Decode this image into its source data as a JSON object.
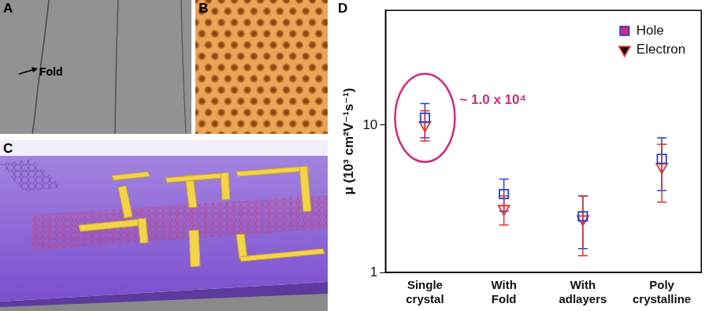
{
  "panels": [
    {
      "label": "A",
      "annotation": "Fold"
    },
    {
      "label": "B"
    },
    {
      "label": "C"
    },
    {
      "label": "D"
    }
  ],
  "chart_data": {
    "type": "scatter",
    "ylabel": "μ (10³ cm²V⁻¹s⁻¹)",
    "categories": [
      [
        "Single",
        "crystal"
      ],
      [
        "With",
        "Fold"
      ],
      [
        "With",
        "adlayers"
      ],
      [
        "Poly",
        "crystalline"
      ]
    ],
    "series": [
      {
        "name": "Hole",
        "color": "#2b3fd0",
        "marker": "square",
        "values": [
          11.2,
          3.4,
          2.4,
          5.9
        ],
        "error_low": [
          8.2,
          2.6,
          1.45,
          3.6
        ],
        "error_high": [
          14.0,
          4.3,
          3.3,
          8.2
        ]
      },
      {
        "name": "Electron",
        "color": "#e8302a",
        "marker": "triangle_down",
        "values": [
          10.0,
          2.7,
          2.3,
          5.2
        ],
        "error_low": [
          7.8,
          2.1,
          1.3,
          3.0
        ],
        "error_high": [
          12.5,
          3.3,
          3.3,
          7.4
        ]
      }
    ],
    "annotation": "~ 1.0 x 10⁴",
    "log": "y",
    "ylim": [
      1,
      60
    ],
    "yticks": [
      1,
      10
    ],
    "grid": false,
    "legend": "upper right"
  }
}
